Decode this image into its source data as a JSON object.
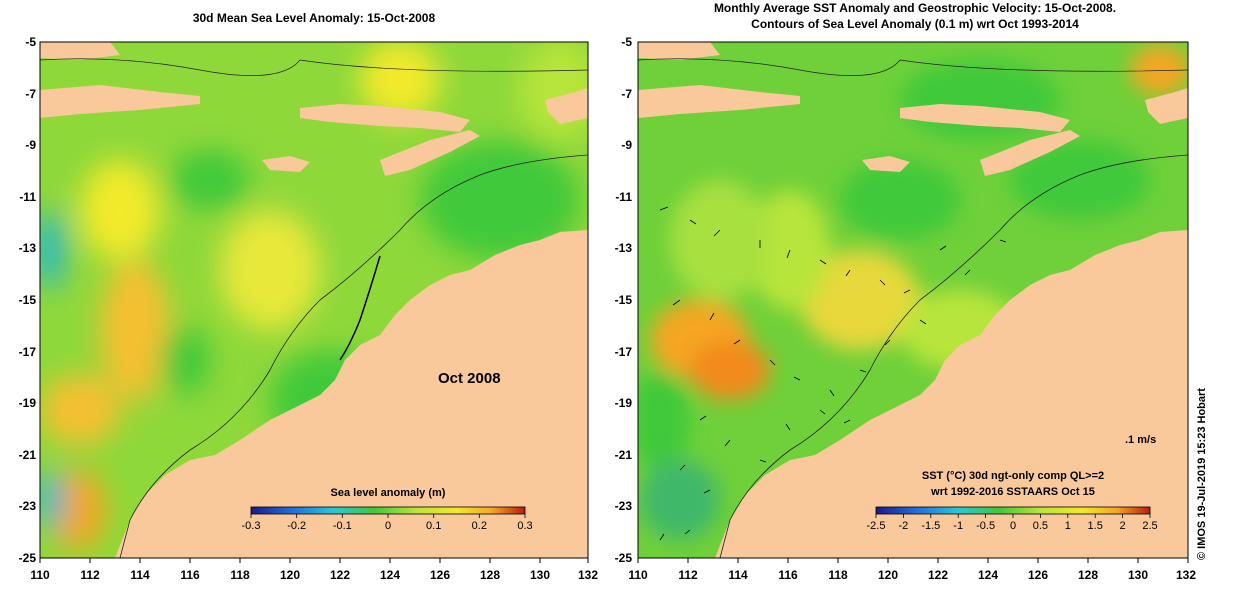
{
  "left_panel": {
    "title": "30d Mean Sea Level Anomaly: 15-Oct-2008",
    "period_label": "Oct 2008",
    "colorbar_title": "Sea level anomaly (m)",
    "colorbar_ticks": [
      "-0.3",
      "-0.2",
      "-0.1",
      "0",
      "0.1",
      "0.2",
      "0.3"
    ]
  },
  "right_panel": {
    "title_line1": "Monthly Average SST Anomaly  and Geostrophic Velocity: 15-Oct-2008.",
    "title_line2": "Contours of Sea Level Anomaly (0.1 m) wrt Oct 1993-2014",
    "colorbar_title_line1": "SST (°C) 30d ngt-only comp QL>=2",
    "colorbar_title_line2": "wrt 1992-2016 SSTAARS Oct 15",
    "colorbar_ticks": [
      "-2.5",
      "-2",
      "-1.5",
      "-1",
      "-0.5",
      "0",
      "0.5",
      "1",
      "1.5",
      "2",
      "2.5"
    ],
    "velocity_scale_label": ".1 m/s"
  },
  "axes": {
    "x_ticks": [
      "110",
      "112",
      "114",
      "116",
      "118",
      "120",
      "122",
      "124",
      "126",
      "128",
      "130",
      "132"
    ],
    "y_ticks": [
      "-5",
      "-7",
      "-9",
      "-11",
      "-13",
      "-15",
      "-17",
      "-19",
      "-21",
      "-23",
      "-25"
    ]
  },
  "credit": "© IMOS 19-Jul-2019 15:23 Hobart",
  "colors": {
    "land": "#f9c89b",
    "ocean_green": "#3fc93a",
    "yellow_green": "#b8e53a",
    "yellow": "#f2ea2a",
    "orange": "#f5a623",
    "cyan": "#27b8c8"
  }
}
